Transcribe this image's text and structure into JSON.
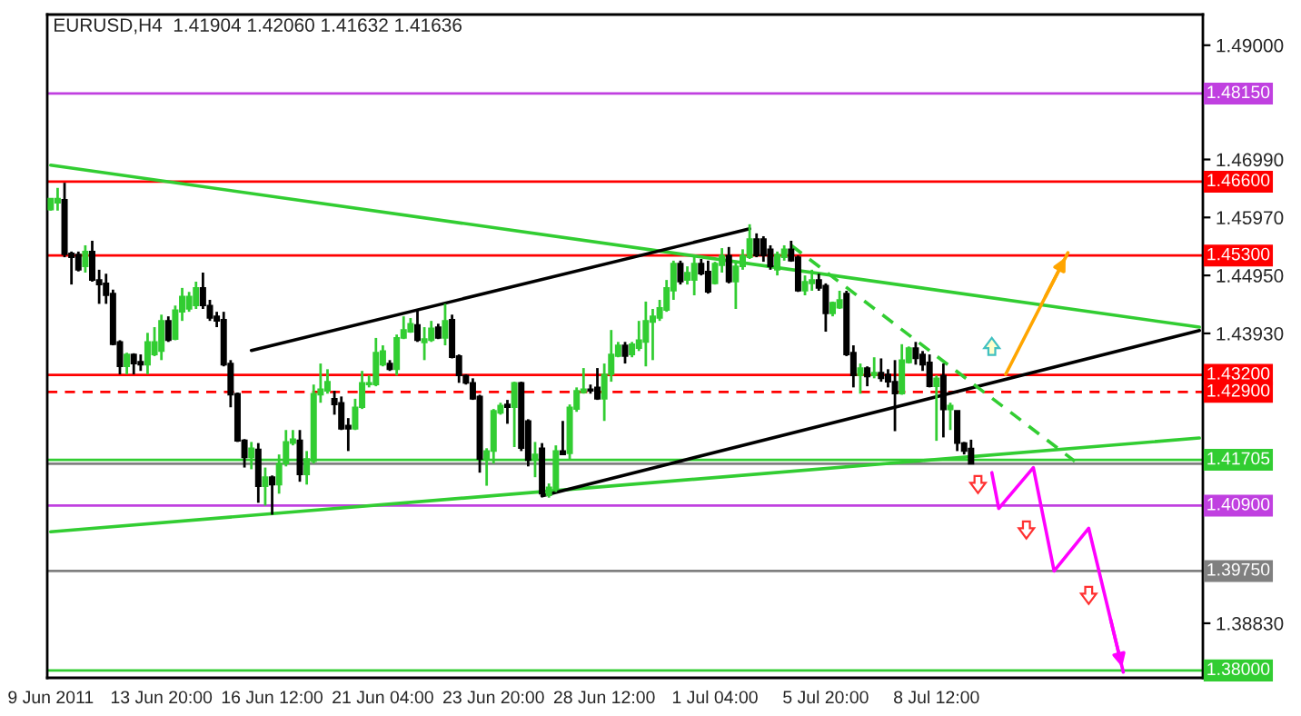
{
  "chart_data": {
    "type": "candlestick",
    "title": "EURUSD,H4  1.41904 1.42060 1.41632 1.41636",
    "categories": [
      "9 Jun 2011",
      null,
      null,
      null,
      null,
      null,
      null,
      null,
      null,
      null,
      null,
      null,
      null,
      null,
      null,
      null,
      "13 Jun 20:00",
      null,
      null,
      null,
      null,
      null,
      null,
      null,
      null,
      null,
      null,
      null,
      null,
      null,
      null,
      null,
      "16 Jun 12:00",
      null,
      null,
      null,
      null,
      null,
      null,
      null,
      null,
      null,
      null,
      null,
      null,
      null,
      null,
      null,
      "21 Jun 04:00",
      null,
      null,
      null,
      null,
      null,
      null,
      null,
      null,
      null,
      null,
      null,
      null,
      null,
      null,
      null,
      "23 Jun 20:00",
      null,
      null,
      null,
      null,
      null,
      null,
      null,
      null,
      null,
      null,
      null,
      null,
      null,
      null,
      null,
      "28 Jun 12:00",
      null,
      null,
      null,
      null,
      null,
      null,
      null,
      null,
      null,
      null,
      null,
      null,
      null,
      null,
      null,
      "1 Jul 04:00",
      null,
      null,
      null,
      null,
      null,
      null,
      null,
      null,
      null,
      null,
      null,
      null,
      null,
      null,
      null,
      "5 Jul 20:00",
      null,
      null,
      null,
      null,
      null,
      null,
      null,
      null,
      null,
      null,
      null,
      null,
      null,
      null,
      null,
      "8 Jul 12:00",
      null,
      null,
      null,
      null,
      null,
      null,
      null,
      null,
      null,
      null,
      null,
      null,
      null,
      null,
      null,
      null,
      null,
      null,
      null,
      null,
      null,
      null,
      null,
      null,
      null,
      null,
      null,
      null,
      null,
      null,
      null,
      null,
      null,
      null,
      null,
      null,
      null,
      null
    ],
    "ohlc": [
      [
        1.4611,
        1.463,
        1.4609,
        1.463
      ],
      [
        1.4623,
        1.4649,
        1.4609,
        1.463
      ],
      [
        1.4628,
        1.4658,
        1.4527,
        1.4532
      ],
      [
        1.4534,
        1.4537,
        1.4479,
        1.4527
      ],
      [
        1.4532,
        1.4537,
        1.4502,
        1.4505
      ],
      [
        1.4511,
        1.4548,
        1.45,
        1.4537
      ],
      [
        1.4537,
        1.4556,
        1.4484,
        1.4487
      ],
      [
        1.4487,
        1.4505,
        1.4445,
        1.4479
      ],
      [
        1.4481,
        1.4498,
        1.4445,
        1.446
      ],
      [
        1.4463,
        1.447,
        1.4372,
        1.4374
      ],
      [
        1.4378,
        1.4381,
        1.4321,
        1.4335
      ],
      [
        1.4335,
        1.4359,
        1.4321,
        1.4356
      ],
      [
        1.4356,
        1.4358,
        1.4321,
        1.434
      ],
      [
        1.4343,
        1.4356,
        1.4327,
        1.4338
      ],
      [
        1.4338,
        1.4394,
        1.4321,
        1.4378
      ],
      [
        1.4356,
        1.4404,
        1.4353,
        1.4378
      ],
      [
        1.4362,
        1.4426,
        1.4346,
        1.4415
      ],
      [
        1.4415,
        1.4423,
        1.4378,
        1.4381
      ],
      [
        1.4383,
        1.4442,
        1.4381,
        1.4434
      ],
      [
        1.4431,
        1.4473,
        1.4415,
        1.4458
      ],
      [
        1.4436,
        1.4466,
        1.4431,
        1.4458
      ],
      [
        1.4442,
        1.4484,
        1.4436,
        1.4473
      ],
      [
        1.4473,
        1.45,
        1.4436,
        1.4442
      ],
      [
        1.4442,
        1.4452,
        1.4415,
        1.442
      ],
      [
        1.4423,
        1.4431,
        1.4404,
        1.4415
      ],
      [
        1.4417,
        1.4431,
        1.4335,
        1.4338
      ],
      [
        1.434,
        1.4346,
        1.4263,
        1.4285
      ],
      [
        1.4287,
        1.4289,
        1.4202,
        1.4204
      ],
      [
        1.4205,
        1.4207,
        1.4157,
        1.4175
      ],
      [
        1.4175,
        1.4202,
        1.4154,
        1.4191
      ],
      [
        1.4189,
        1.42,
        1.4095,
        1.4124
      ],
      [
        1.4124,
        1.4157,
        1.409,
        1.414
      ],
      [
        1.414,
        1.4143,
        1.4074,
        1.4127
      ],
      [
        1.4127,
        1.418,
        1.4111,
        1.4164
      ],
      [
        1.4164,
        1.4223,
        1.4159,
        1.4202
      ],
      [
        1.42,
        1.4223,
        1.4196,
        1.4207
      ],
      [
        1.4205,
        1.4223,
        1.4132,
        1.4145
      ],
      [
        1.4145,
        1.4186,
        1.4127,
        1.4172
      ],
      [
        1.4168,
        1.4303,
        1.4164,
        1.4287
      ],
      [
        1.4285,
        1.434,
        1.4271,
        1.4295
      ],
      [
        1.4292,
        1.433,
        1.4287,
        1.4308
      ],
      [
        1.4278,
        1.4292,
        1.425,
        1.4268
      ],
      [
        1.4271,
        1.4282,
        1.4223,
        1.4225
      ],
      [
        1.4231,
        1.4244,
        1.4186,
        1.4225
      ],
      [
        1.4225,
        1.4278,
        1.4223,
        1.4263
      ],
      [
        1.4263,
        1.4327,
        1.426,
        1.4306
      ],
      [
        1.4303,
        1.4319,
        1.4298,
        1.4306
      ],
      [
        1.4303,
        1.4385,
        1.43,
        1.4359
      ],
      [
        1.4338,
        1.4372,
        1.4335,
        1.4362
      ],
      [
        1.434,
        1.4346,
        1.4327,
        1.433
      ],
      [
        1.433,
        1.4391,
        1.4319,
        1.4385
      ],
      [
        1.4385,
        1.4423,
        1.4383,
        1.4399
      ],
      [
        1.4396,
        1.442,
        1.4394,
        1.441
      ],
      [
        1.4408,
        1.4436,
        1.4378,
        1.4381
      ],
      [
        1.4377,
        1.4404,
        1.4346,
        1.4383
      ],
      [
        1.4381,
        1.4415,
        1.4378,
        1.4402
      ],
      [
        1.4404,
        1.441,
        1.4383,
        1.4385
      ],
      [
        1.4385,
        1.4445,
        1.4372,
        1.4415
      ],
      [
        1.4417,
        1.4426,
        1.4349,
        1.4351
      ],
      [
        1.4353,
        1.4356,
        1.4306,
        1.4319
      ],
      [
        1.4319,
        1.4321,
        1.4303,
        1.4306
      ],
      [
        1.4306,
        1.4314,
        1.4276,
        1.4278
      ],
      [
        1.4282,
        1.4285,
        1.4148,
        1.4172
      ],
      [
        1.4172,
        1.4191,
        1.4125,
        1.4186
      ],
      [
        1.4186,
        1.426,
        1.4164,
        1.4257
      ],
      [
        1.4253,
        1.4271,
        1.425,
        1.4266
      ],
      [
        1.4268,
        1.4276,
        1.4234,
        1.4263
      ],
      [
        1.4263,
        1.4308,
        1.4193,
        1.4306
      ],
      [
        1.4306,
        1.4308,
        1.4186,
        1.4191
      ],
      [
        1.4239,
        1.4242,
        1.4159,
        1.417
      ],
      [
        1.4172,
        1.4202,
        1.414,
        1.418
      ],
      [
        1.4191,
        1.42,
        1.4108,
        1.4111
      ],
      [
        1.4108,
        1.4129,
        1.4104,
        1.4122
      ],
      [
        1.4119,
        1.4196,
        1.4114,
        1.4186
      ],
      [
        1.4186,
        1.4239,
        1.418,
        1.418
      ],
      [
        1.4182,
        1.4268,
        1.417,
        1.4263
      ],
      [
        1.426,
        1.4298,
        1.4255,
        1.4292
      ],
      [
        1.4289,
        1.4332,
        1.4287,
        1.4295
      ],
      [
        1.4295,
        1.4303,
        1.4287,
        1.4292
      ],
      [
        1.4298,
        1.4332,
        1.4276,
        1.4278
      ],
      [
        1.4278,
        1.434,
        1.4239,
        1.4321
      ],
      [
        1.4321,
        1.4399,
        1.4308,
        1.4356
      ],
      [
        1.4353,
        1.4378,
        1.4351,
        1.4372
      ],
      [
        1.4372,
        1.4378,
        1.434,
        1.4353
      ],
      [
        1.4356,
        1.4378,
        1.4351,
        1.4374
      ],
      [
        1.4367,
        1.4415,
        1.4362,
        1.4381
      ],
      [
        1.4378,
        1.4449,
        1.4335,
        1.4415
      ],
      [
        1.4413,
        1.4436,
        1.4346,
        1.4423
      ],
      [
        1.442,
        1.4452,
        1.4415,
        1.4438
      ],
      [
        1.4434,
        1.4487,
        1.4431,
        1.4473
      ],
      [
        1.4468,
        1.4521,
        1.4452,
        1.4516
      ],
      [
        1.4516,
        1.4521,
        1.4479,
        1.4484
      ],
      [
        1.4487,
        1.4511,
        1.4479,
        1.45
      ],
      [
        1.4487,
        1.4532,
        1.446,
        1.4516
      ],
      [
        1.4516,
        1.4524,
        1.4495,
        1.4498
      ],
      [
        1.4502,
        1.4521,
        1.4463,
        1.4466
      ],
      [
        1.4481,
        1.4519,
        1.4479,
        1.4516
      ],
      [
        1.4513,
        1.4543,
        1.45,
        1.453
      ],
      [
        1.453,
        1.4545,
        1.4481,
        1.4484
      ],
      [
        1.4484,
        1.4521,
        1.4436,
        1.4511
      ],
      [
        1.4511,
        1.4541,
        1.4505,
        1.453
      ],
      [
        1.4527,
        1.4585,
        1.4524,
        1.4559
      ],
      [
        1.4559,
        1.4569,
        1.4527,
        1.453
      ],
      [
        1.4559,
        1.4564,
        1.4519,
        1.453
      ],
      [
        1.4541,
        1.4548,
        1.4505,
        1.4511
      ],
      [
        1.4505,
        1.4537,
        1.4495,
        1.4532
      ],
      [
        1.4527,
        1.4548,
        1.4521,
        1.4541
      ],
      [
        1.4541,
        1.4556,
        1.4519,
        1.4521
      ],
      [
        1.4527,
        1.453,
        1.4466,
        1.4468
      ],
      [
        1.4468,
        1.4495,
        1.446,
        1.4484
      ],
      [
        1.4481,
        1.4505,
        1.4468,
        1.4487
      ],
      [
        1.4487,
        1.4498,
        1.4468,
        1.4473
      ],
      [
        1.4477,
        1.4481,
        1.4396,
        1.4428
      ],
      [
        1.4428,
        1.4449,
        1.4423,
        1.4447
      ],
      [
        1.4438,
        1.4468,
        1.4436,
        1.4452
      ],
      [
        1.4463,
        1.4468,
        1.4353,
        1.4356
      ],
      [
        1.4359,
        1.4372,
        1.4298,
        1.4319
      ],
      [
        1.4319,
        1.434,
        1.4287,
        1.4332
      ],
      [
        1.4332,
        1.4335,
        1.43,
        1.4317
      ],
      [
        1.4319,
        1.4351,
        1.4314,
        1.4324
      ],
      [
        1.4324,
        1.4349,
        1.4308,
        1.4314
      ],
      [
        1.4321,
        1.433,
        1.4298,
        1.4308
      ],
      [
        1.4308,
        1.4346,
        1.4221,
        1.4287
      ],
      [
        1.4287,
        1.4374,
        1.4285,
        1.4346
      ],
      [
        1.4342,
        1.437,
        1.434,
        1.4367
      ],
      [
        1.4367,
        1.4378,
        1.4338,
        1.4349
      ],
      [
        1.4356,
        1.4362,
        1.4327,
        1.4338
      ],
      [
        1.4342,
        1.4356,
        1.4298,
        1.43
      ],
      [
        1.43,
        1.4319,
        1.4204,
        1.4314
      ],
      [
        1.4319,
        1.434,
        1.421,
        1.4259
      ],
      [
        1.4259,
        1.4271,
        1.4223,
        1.4266
      ],
      [
        1.4257,
        1.4257,
        1.4186,
        1.42
      ],
      [
        1.42,
        1.4202,
        1.418,
        1.4186
      ],
      [
        1.41904,
        1.4206,
        1.41632,
        1.41636
      ],
      null,
      null,
      null,
      null,
      null,
      null,
      null,
      null,
      null,
      null,
      null,
      null,
      null,
      null,
      null,
      null,
      null,
      null,
      null,
      null,
      null,
      null,
      null,
      null,
      null,
      null,
      null,
      null,
      null,
      null,
      null,
      null,
      null
    ],
    "ylim": [
      1.3787,
      1.4954
    ],
    "yticks": [
      {
        "value": 1.49,
        "label": "1.49000"
      },
      {
        "value": 1.4699,
        "label": "1.46990"
      },
      {
        "value": 1.4597,
        "label": "1.45970"
      },
      {
        "value": 1.4495,
        "label": "1.44950"
      },
      {
        "value": 1.4393,
        "label": "1.43930"
      },
      {
        "value": 1.3883,
        "label": "1.38830"
      }
    ],
    "ref_lines": [
      {
        "axis": "y",
        "value": 1.4815,
        "label": "1.48150",
        "color": "#c040e0"
      },
      {
        "axis": "y",
        "value": 1.466,
        "label": "1.46600",
        "color": "#ff0000"
      },
      {
        "axis": "y",
        "value": 1.453,
        "label": "1.45300",
        "color": "#ff0000"
      },
      {
        "axis": "y",
        "value": 1.432,
        "label": "1.43200",
        "color": "#ff0000"
      },
      {
        "axis": "y",
        "value": 1.429,
        "label": "1.42900",
        "color": "#ff0000",
        "line_style": "dashed"
      },
      {
        "axis": "y",
        "value": 1.41705,
        "label": "1.41705",
        "color": "#32cd32"
      },
      {
        "axis": "y",
        "value": 1.41636,
        "color": "#808080"
      },
      {
        "axis": "y",
        "value": 1.409,
        "label": "1.40900",
        "color": "#c040e0"
      },
      {
        "axis": "y",
        "value": 1.3975,
        "label": "1.39750",
        "color": "#808080"
      },
      {
        "axis": "y",
        "value": 1.38,
        "label": "1.38000",
        "color": "#32cd32"
      }
    ],
    "series": [
      {
        "type": "line",
        "color": "#32cd32",
        "values": [
          1.4689,
          null,
          null,
          null,
          null,
          null,
          null,
          null,
          null,
          null,
          null,
          null,
          null,
          null,
          null,
          null,
          null,
          null,
          null,
          null,
          null,
          null,
          null,
          null,
          null,
          null,
          null,
          null,
          null,
          null,
          null,
          null,
          null,
          null,
          null,
          null,
          null,
          null,
          null,
          null,
          null,
          null,
          null,
          null,
          null,
          null,
          null,
          null,
          null,
          null,
          null,
          null,
          null,
          null,
          null,
          null,
          null,
          null,
          null,
          null,
          null,
          null,
          null,
          null,
          null,
          null,
          null,
          null,
          null,
          null,
          null,
          null,
          null,
          null,
          null,
          null,
          null,
          null,
          null,
          null,
          null,
          null,
          null,
          null,
          null,
          null,
          null,
          null,
          null,
          null,
          null,
          null,
          null,
          null,
          null,
          null,
          null,
          null,
          null,
          null,
          null,
          null,
          null,
          null,
          null,
          null,
          null,
          null,
          null,
          null,
          null,
          null,
          null,
          null,
          null,
          null,
          null,
          null,
          null,
          null,
          null,
          null,
          null,
          null,
          null,
          null,
          null,
          null,
          null,
          null,
          null,
          null,
          null,
          null,
          null,
          null,
          null,
          null,
          null,
          null,
          null,
          null,
          null,
          null,
          null,
          null,
          null,
          null,
          null,
          null,
          null,
          null,
          null,
          null,
          null,
          null,
          null,
          null,
          null,
          null,
          null,
          null,
          null,
          null,
          null,
          null,
          1.4404
        ]
      },
      {
        "type": "line",
        "color": "#32cd32",
        "values": [
          1.4044,
          null,
          null,
          null,
          null,
          null,
          null,
          null,
          null,
          null,
          null,
          null,
          null,
          null,
          null,
          null,
          null,
          null,
          null,
          null,
          null,
          null,
          null,
          null,
          null,
          null,
          null,
          null,
          null,
          null,
          null,
          null,
          null,
          null,
          null,
          null,
          null,
          null,
          null,
          null,
          null,
          null,
          null,
          null,
          null,
          null,
          null,
          null,
          null,
          null,
          null,
          null,
          null,
          null,
          null,
          null,
          null,
          null,
          null,
          null,
          null,
          null,
          null,
          null,
          null,
          null,
          null,
          null,
          null,
          null,
          null,
          null,
          null,
          null,
          null,
          null,
          null,
          null,
          null,
          null,
          null,
          null,
          null,
          null,
          null,
          null,
          null,
          null,
          null,
          null,
          null,
          null,
          null,
          null,
          null,
          null,
          null,
          null,
          null,
          null,
          null,
          null,
          null,
          null,
          null,
          null,
          null,
          null,
          null,
          null,
          null,
          null,
          null,
          null,
          null,
          null,
          null,
          null,
          null,
          null,
          null,
          null,
          null,
          null,
          null,
          null,
          null,
          null,
          null,
          null,
          null,
          null,
          null,
          null,
          null,
          null,
          null,
          null,
          null,
          null,
          null,
          null,
          null,
          null,
          null,
          null,
          null,
          null,
          null,
          null,
          null,
          null,
          null,
          null,
          null,
          null,
          null,
          null,
          null,
          null,
          null,
          null,
          null,
          null,
          null,
          null,
          1.4209
        ]
      },
      {
        "type": "line",
        "color": "#000000",
        "values": [
          null,
          null,
          null,
          null,
          null,
          null,
          null,
          null,
          null,
          null,
          null,
          null,
          null,
          null,
          null,
          null,
          null,
          null,
          null,
          null,
          null,
          null,
          null,
          null,
          null,
          null,
          null,
          null,
          null,
          1.4363,
          null,
          null,
          null,
          null,
          null,
          null,
          null,
          null,
          null,
          null,
          null,
          null,
          null,
          null,
          null,
          null,
          null,
          null,
          null,
          null,
          null,
          null,
          null,
          null,
          null,
          null,
          null,
          null,
          null,
          null,
          null,
          null,
          null,
          null,
          null,
          null,
          null,
          null,
          null,
          null,
          null,
          null,
          null,
          null,
          null,
          null,
          null,
          null,
          null,
          null,
          null,
          null,
          null,
          null,
          null,
          null,
          null,
          null,
          null,
          null,
          null,
          null,
          null,
          null,
          null,
          null,
          null,
          null,
          null,
          null,
          null,
          1.4577,
          null,
          null,
          null,
          null,
          null,
          null,
          null,
          null,
          null,
          null,
          null,
          null,
          null,
          null,
          null,
          null,
          null,
          null,
          null,
          null,
          null,
          null,
          null,
          null,
          null,
          null,
          null,
          null,
          null,
          null,
          null,
          null,
          null,
          null,
          null,
          null,
          null,
          null,
          null,
          null,
          null,
          null,
          null,
          null,
          null,
          null,
          null,
          null,
          null,
          null,
          null,
          null,
          null,
          null,
          null,
          null,
          null,
          null,
          null,
          null,
          null,
          null,
          null,
          null,
          null
        ]
      },
      {
        "type": "line",
        "color": "#000000",
        "values": [
          null,
          null,
          null,
          null,
          null,
          null,
          null,
          null,
          null,
          null,
          null,
          null,
          null,
          null,
          null,
          null,
          null,
          null,
          null,
          null,
          null,
          null,
          null,
          null,
          null,
          null,
          null,
          null,
          null,
          null,
          null,
          null,
          null,
          null,
          null,
          null,
          null,
          null,
          null,
          null,
          null,
          null,
          null,
          null,
          null,
          null,
          null,
          null,
          null,
          null,
          null,
          null,
          null,
          null,
          null,
          null,
          null,
          null,
          null,
          null,
          null,
          null,
          null,
          null,
          null,
          null,
          null,
          null,
          null,
          null,
          null,
          1.4107,
          null,
          null,
          null,
          null,
          null,
          null,
          null,
          null,
          null,
          null,
          null,
          null,
          null,
          null,
          null,
          null,
          null,
          null,
          null,
          null,
          null,
          null,
          null,
          null,
          null,
          null,
          null,
          null,
          null,
          null,
          null,
          null,
          null,
          null,
          null,
          null,
          null,
          null,
          null,
          null,
          null,
          null,
          null,
          null,
          null,
          null,
          null,
          null,
          null,
          null,
          null,
          null,
          null,
          null,
          null,
          null,
          null,
          null,
          null,
          null,
          null,
          null,
          null,
          null,
          null,
          null,
          null,
          null,
          null,
          null,
          null,
          null,
          null,
          null,
          null,
          null,
          null,
          null,
          null,
          null,
          null,
          null,
          null,
          null,
          null,
          null,
          null,
          null,
          null,
          null,
          null,
          null,
          null,
          null,
          1.4398
        ]
      },
      {
        "type": "line",
        "color": "#32cd32",
        "line_style": "dashed",
        "values": [
          null,
          null,
          null,
          null,
          null,
          null,
          null,
          null,
          null,
          null,
          null,
          null,
          null,
          null,
          null,
          null,
          null,
          null,
          null,
          null,
          null,
          null,
          null,
          null,
          null,
          null,
          null,
          null,
          null,
          null,
          null,
          null,
          null,
          null,
          null,
          null,
          null,
          null,
          null,
          null,
          null,
          null,
          null,
          null,
          null,
          null,
          null,
          null,
          null,
          null,
          null,
          null,
          null,
          null,
          null,
          null,
          null,
          null,
          null,
          null,
          null,
          null,
          null,
          null,
          null,
          null,
          null,
          null,
          null,
          null,
          null,
          null,
          null,
          null,
          null,
          null,
          null,
          null,
          null,
          null,
          null,
          null,
          null,
          null,
          null,
          null,
          null,
          null,
          null,
          null,
          null,
          null,
          null,
          null,
          null,
          null,
          null,
          null,
          null,
          null,
          null,
          null,
          null,
          null,
          null,
          null,
          null,
          1.4548,
          null,
          null,
          null,
          null,
          null,
          null,
          null,
          null,
          null,
          null,
          null,
          null,
          null,
          null,
          null,
          null,
          null,
          null,
          null,
          null,
          null,
          null,
          null,
          null,
          null,
          null,
          null,
          null,
          null,
          null,
          null,
          null,
          null,
          null,
          null,
          null,
          null,
          null,
          null,
          null,
          1.4168,
          null,
          null,
          null,
          null,
          null,
          null,
          null,
          null,
          null,
          null,
          null,
          null,
          null,
          null,
          null,
          null,
          null,
          null
        ]
      },
      {
        "type": "line",
        "color": "#ff00ff",
        "values": [
          null,
          null,
          null,
          null,
          null,
          null,
          null,
          null,
          null,
          null,
          null,
          null,
          null,
          null,
          null,
          null,
          null,
          null,
          null,
          null,
          null,
          null,
          null,
          null,
          null,
          null,
          null,
          null,
          null,
          null,
          null,
          null,
          null,
          null,
          null,
          null,
          null,
          null,
          null,
          null,
          null,
          null,
          null,
          null,
          null,
          null,
          null,
          null,
          null,
          null,
          null,
          null,
          null,
          null,
          null,
          null,
          null,
          null,
          null,
          null,
          null,
          null,
          null,
          null,
          null,
          null,
          null,
          null,
          null,
          null,
          null,
          null,
          null,
          null,
          null,
          null,
          null,
          null,
          null,
          null,
          null,
          null,
          null,
          null,
          null,
          null,
          null,
          null,
          null,
          null,
          null,
          null,
          null,
          null,
          null,
          null,
          null,
          null,
          null,
          null,
          null,
          null,
          null,
          null,
          null,
          null,
          null,
          null,
          null,
          null,
          null,
          null,
          null,
          null,
          null,
          null,
          null,
          null,
          null,
          null,
          null,
          null,
          null,
          null,
          null,
          null,
          null,
          null,
          null,
          null,
          null,
          null,
          null,
          null,
          null,
          null,
          1.4148,
          1.4085,
          null,
          null,
          null,
          null,
          1.4157,
          null,
          null,
          1.3975,
          null,
          null,
          null,
          null,
          1.405,
          null,
          null,
          null,
          null,
          1.3797,
          null,
          null,
          null,
          null,
          null,
          null,
          null,
          null,
          null,
          null,
          null
        ]
      },
      {
        "type": "line",
        "color": "#ffa500",
        "values": [
          null,
          null,
          null,
          null,
          null,
          null,
          null,
          null,
          null,
          null,
          null,
          null,
          null,
          null,
          null,
          null,
          null,
          null,
          null,
          null,
          null,
          null,
          null,
          null,
          null,
          null,
          null,
          null,
          null,
          null,
          null,
          null,
          null,
          null,
          null,
          null,
          null,
          null,
          null,
          null,
          null,
          null,
          null,
          null,
          null,
          null,
          null,
          null,
          null,
          null,
          null,
          null,
          null,
          null,
          null,
          null,
          null,
          null,
          null,
          null,
          null,
          null,
          null,
          null,
          null,
          null,
          null,
          null,
          null,
          null,
          null,
          null,
          null,
          null,
          null,
          null,
          null,
          null,
          null,
          null,
          null,
          null,
          null,
          null,
          null,
          null,
          null,
          null,
          null,
          null,
          null,
          null,
          null,
          null,
          null,
          null,
          null,
          null,
          null,
          null,
          null,
          null,
          null,
          null,
          null,
          null,
          null,
          null,
          null,
          null,
          null,
          null,
          null,
          null,
          null,
          null,
          null,
          null,
          null,
          null,
          null,
          null,
          null,
          null,
          null,
          null,
          null,
          null,
          null,
          null,
          null,
          null,
          null,
          null,
          null,
          null,
          null,
          null,
          1.4321,
          null,
          null,
          null,
          null,
          null,
          null,
          null,
          null,
          1.4535,
          null,
          null,
          null,
          null,
          null,
          null,
          null,
          null,
          null,
          null,
          null,
          null,
          null,
          null,
          null,
          null,
          null,
          null,
          null
        ]
      }
    ]
  }
}
